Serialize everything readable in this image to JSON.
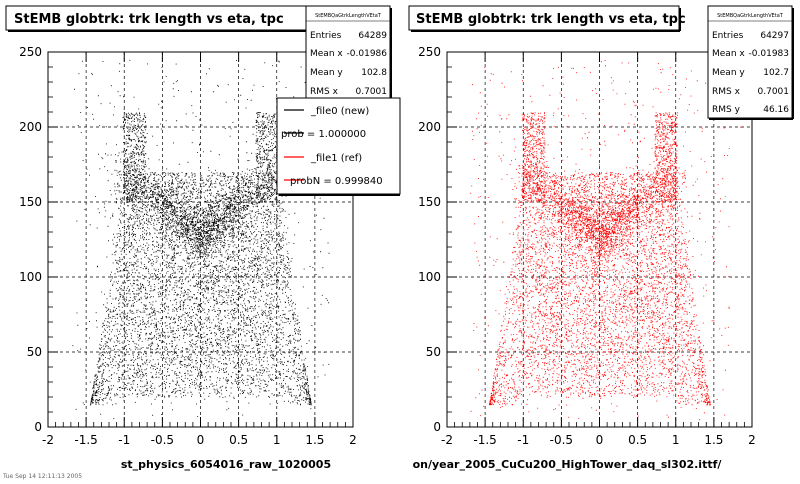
{
  "chart_data": [
    {
      "type": "scatter",
      "title": "StEMB globtrk: trk length vs eta, tpc",
      "xlabel": "st_physics_6054016_raw_1020005",
      "ylabel": "",
      "xlim": [
        -2,
        2
      ],
      "ylim": [
        0,
        250
      ],
      "x_ticks": [
        "-2",
        "-1.5",
        "-1",
        "-0.5",
        "0",
        "0.5",
        "1",
        "1.5",
        "2"
      ],
      "y_ticks": [
        "0",
        "50",
        "100",
        "150",
        "200",
        "250"
      ],
      "grid": true,
      "point_color": "#000000",
      "stats": {
        "header": "StEMBQaGtrkLengthVEtaT",
        "rows": [
          {
            "label": "Entries",
            "value": "64289"
          },
          {
            "label": "Mean x",
            "value": "-0.01986"
          },
          {
            "label": "Mean y",
            "value": "102.8"
          },
          {
            "label": "RMS x",
            "value": "0.7001"
          }
        ]
      },
      "legend": {
        "placement": "top-right",
        "entries": [
          {
            "label": "_file0 (new)",
            "color": "#000000"
          },
          {
            "label": "prob = 1.000000",
            "color": "#000000"
          },
          {
            "label": "_file1 (ref)",
            "color": "#ff0000"
          },
          {
            "label": "probN = 0.999840",
            "color": "#ff0000"
          }
        ]
      }
    },
    {
      "type": "scatter",
      "title": "StEMB globtrk: trk length vs eta, tpc",
      "xlabel": "on/year_2005_CuCu200_HighTower_daq_sl302.ittf/",
      "ylabel": "",
      "xlim": [
        -2,
        2
      ],
      "ylim": [
        0,
        250
      ],
      "x_ticks": [
        "-2",
        "-1.5",
        "-1",
        "-0.5",
        "0",
        "0.5",
        "1",
        "1.5",
        "2"
      ],
      "y_ticks": [
        "0",
        "50",
        "100",
        "150",
        "200",
        "250"
      ],
      "grid": true,
      "point_color": "#ff0000",
      "stats": {
        "header": "StEMBQaGtrkLengthVEtaT",
        "rows": [
          {
            "label": "Entries",
            "value": "64297"
          },
          {
            "label": "Mean x",
            "value": "-0.01983"
          },
          {
            "label": "Mean y",
            "value": "102.7"
          },
          {
            "label": "RMS x",
            "value": "0.7001"
          },
          {
            "label": "RMS y",
            "value": "46.16"
          }
        ]
      }
    }
  ],
  "footer_text": "Tue Sep 14 12:11:13 2005"
}
